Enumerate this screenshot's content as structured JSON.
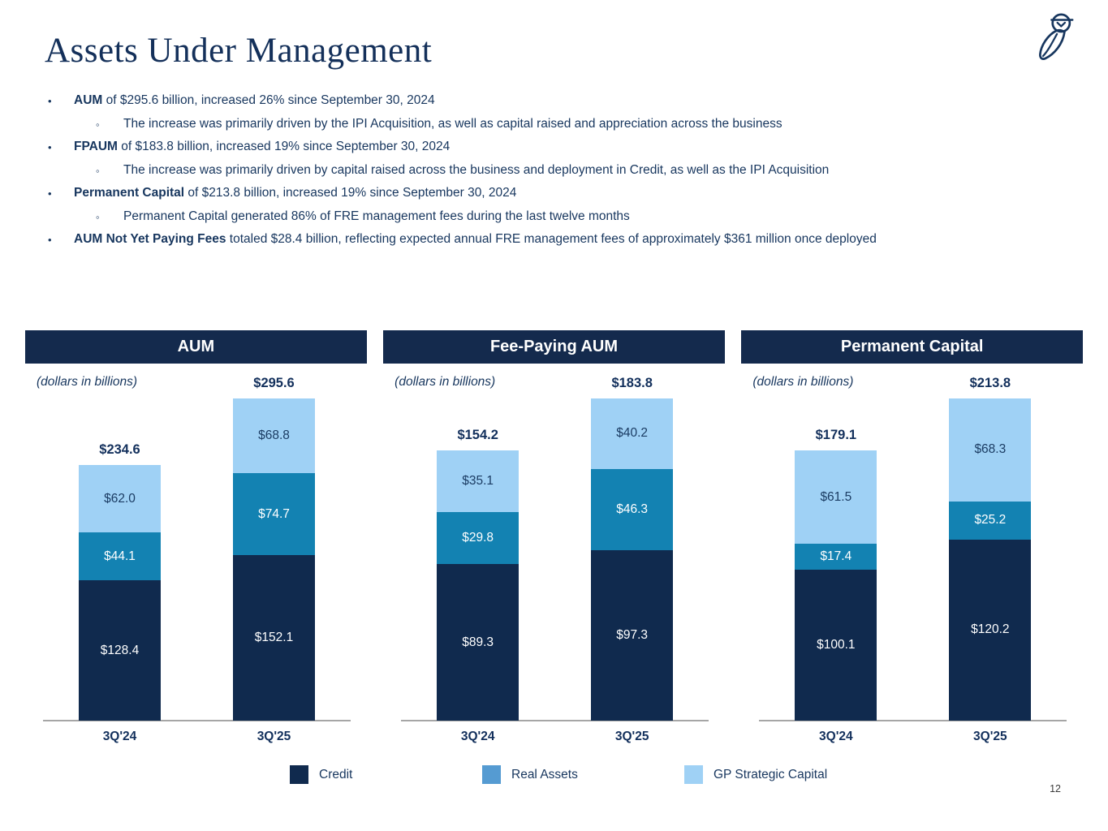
{
  "title": "Assets Under Management",
  "page": {
    "number": "12"
  },
  "logo": {
    "icon": "owl-logo"
  },
  "bullets": [
    {
      "lead": "AUM",
      "rest": " of $295.6 billion, increased 26% since September 30, 2024",
      "sub": [
        "The increase was primarily driven by the IPI Acquisition, as well as capital raised and appreciation across the business"
      ]
    },
    {
      "lead": "FPAUM",
      "rest": " of $183.8 billion, increased 19% since September 30, 2024",
      "sub": [
        "The increase was primarily driven by capital raised across the business and deployment in Credit, as well as the IPI Acquisition"
      ]
    },
    {
      "lead": "Permanent Capital",
      "rest": " of $213.8 billion, increased 19% since September 30, 2024",
      "sub": [
        "Permanent Capital generated 86% of FRE management fees during the last twelve months"
      ]
    },
    {
      "lead": "AUM Not Yet Paying Fees",
      "rest": " totaled $28.4 billion, reflecting expected annual FRE management fees of approximately $361 million once deployed",
      "sub": []
    }
  ],
  "colors": {
    "header_band": "#142A4D",
    "text_navy": "#17365E",
    "label_navy": "#13305C",
    "baseline_gray": "#A6A6A6",
    "credit": "#102A4E",
    "real_assets": "#1382B2",
    "gp_strategic": "#9FD1F5"
  },
  "series_styles": {
    "Credit": {
      "fill": "#102A4E",
      "text": "#FFFFFF"
    },
    "Real Assets": {
      "fill": "#1382B2",
      "text": "#FFFFFF"
    },
    "GP Strategic Capital": {
      "fill": "#9FD1F5",
      "text": "#1B3C63"
    }
  },
  "legend": {
    "position": "bottom",
    "items": [
      {
        "label": "Credit",
        "color": "#102A4E"
      },
      {
        "label": "Real Assets",
        "color": "#559BD2"
      },
      {
        "label": "GP Strategic Capital",
        "color": "#9FD1F5"
      }
    ]
  },
  "chart_data": [
    {
      "type": "bar",
      "stacked": true,
      "title": "AUM",
      "note": "(dollars in billions)",
      "value_prefix": "$",
      "categories": [
        "3Q'24",
        "3Q'25"
      ],
      "series": [
        {
          "name": "Credit",
          "values": [
            128.4,
            152.1
          ]
        },
        {
          "name": "Real Assets",
          "values": [
            44.1,
            74.7
          ]
        },
        {
          "name": "GP Strategic Capital",
          "values": [
            62.0,
            68.8
          ]
        }
      ],
      "totals": [
        234.6,
        295.6
      ],
      "grid": false,
      "yaxis_visible": false
    },
    {
      "type": "bar",
      "stacked": true,
      "title": "Fee-Paying AUM",
      "note": "(dollars in billions)",
      "value_prefix": "$",
      "categories": [
        "3Q'24",
        "3Q'25"
      ],
      "series": [
        {
          "name": "Credit",
          "values": [
            89.3,
            97.3
          ]
        },
        {
          "name": "Real Assets",
          "values": [
            29.8,
            46.3
          ]
        },
        {
          "name": "GP Strategic Capital",
          "values": [
            35.1,
            40.2
          ]
        }
      ],
      "totals": [
        154.2,
        183.8
      ],
      "grid": false,
      "yaxis_visible": false
    },
    {
      "type": "bar",
      "stacked": true,
      "title": "Permanent Capital",
      "note": "(dollars in billions)",
      "value_prefix": "$",
      "categories": [
        "3Q'24",
        "3Q'25"
      ],
      "series": [
        {
          "name": "Credit",
          "values": [
            100.1,
            120.2
          ]
        },
        {
          "name": "Real Assets",
          "values": [
            17.4,
            25.2
          ]
        },
        {
          "name": "GP Strategic Capital",
          "values": [
            61.5,
            68.3
          ]
        }
      ],
      "totals": [
        179.1,
        213.8
      ],
      "grid": false,
      "yaxis_visible": false
    }
  ]
}
